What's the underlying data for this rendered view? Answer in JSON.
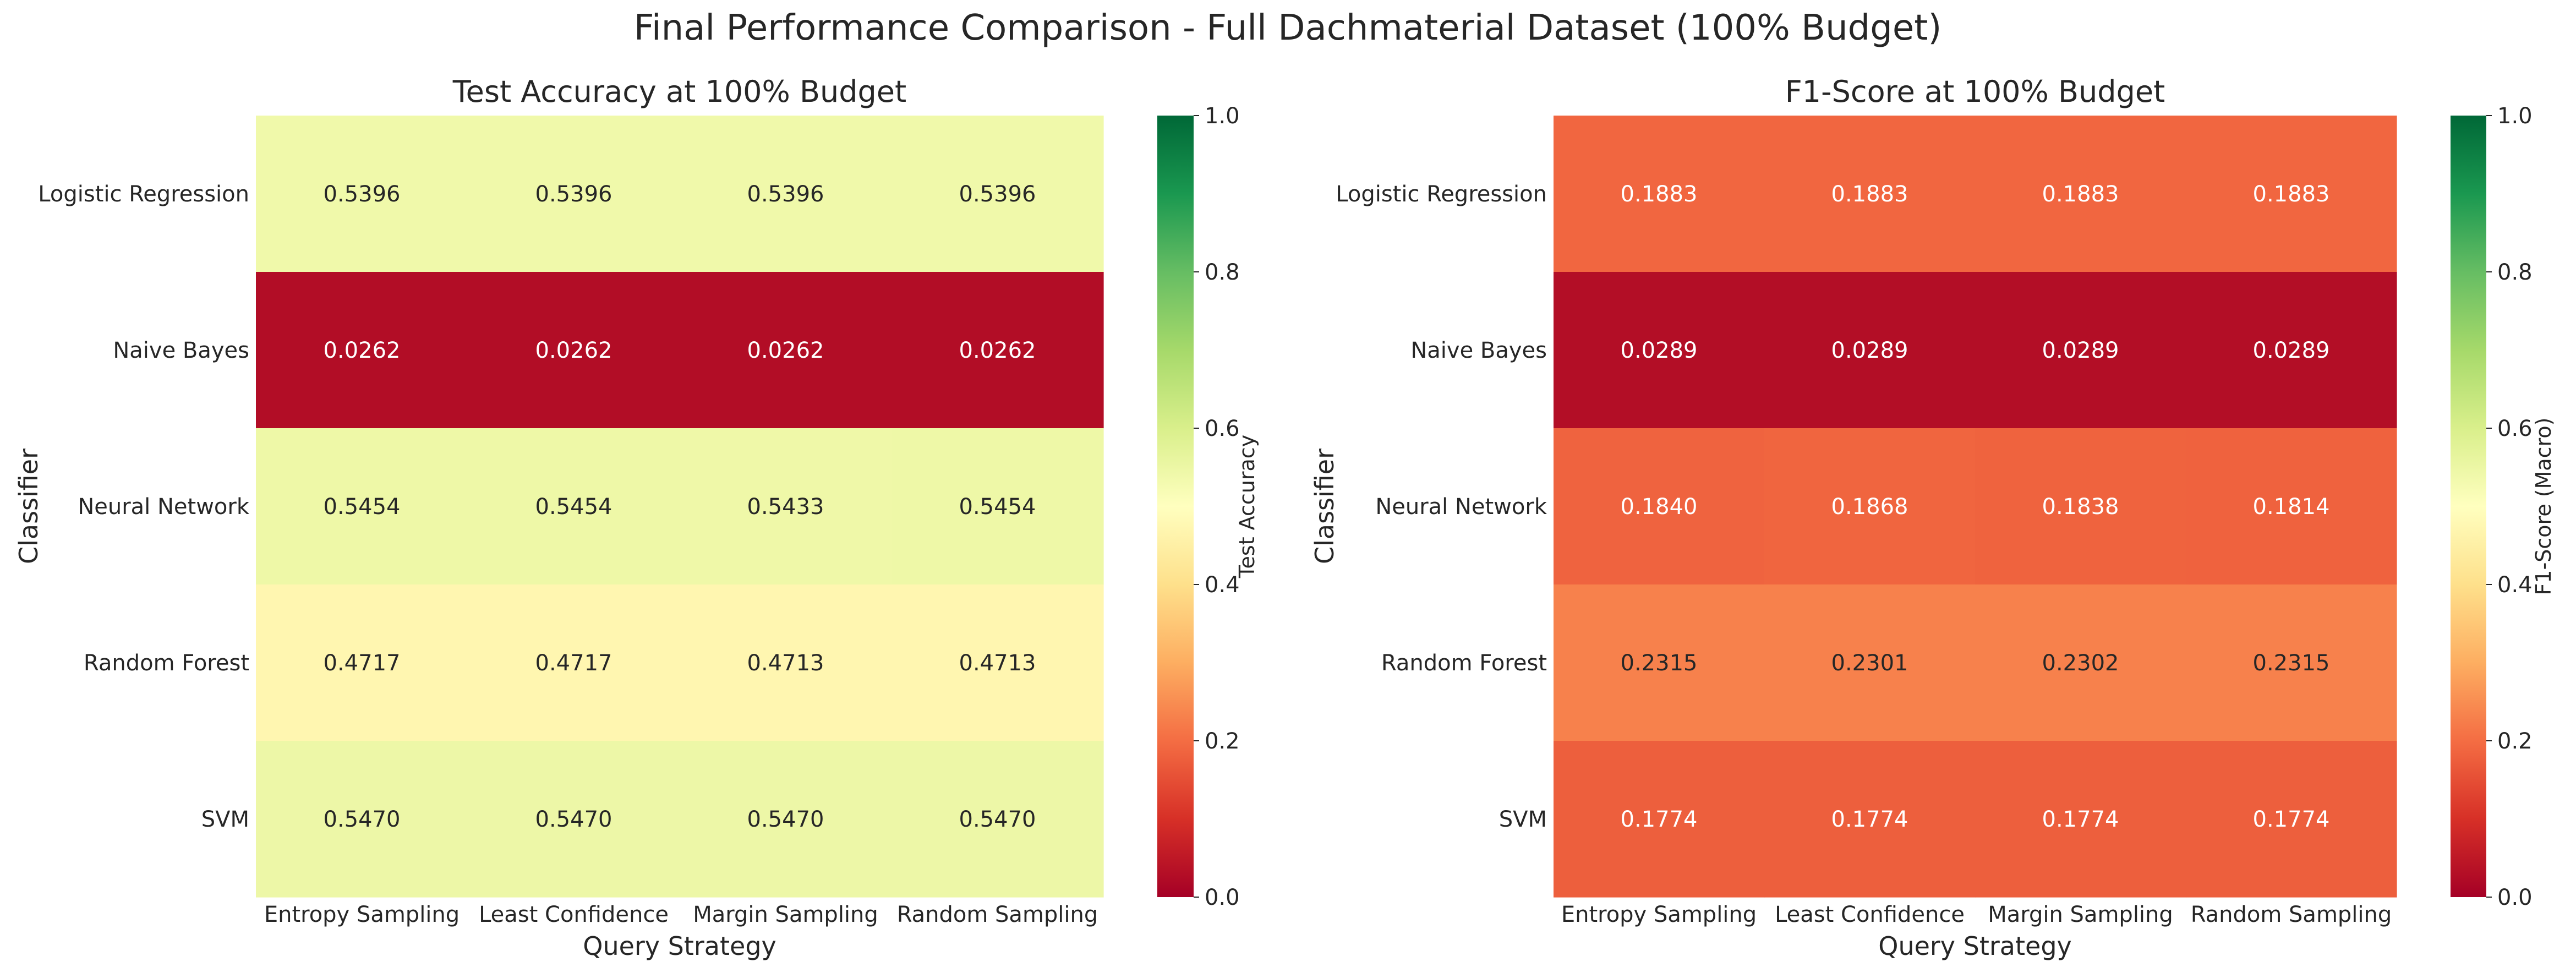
{
  "suptitle": "Final Performance Comparison - Full Dachmaterial Dataset (100% Budget)",
  "chart_data": [
    {
      "type": "heatmap",
      "title": "Test Accuracy at 100% Budget",
      "xlabel": "Query Strategy",
      "ylabel": "Classifier",
      "colorbar_label": "Test Accuracy",
      "colormap": "RdYlGn",
      "vmin": 0.0,
      "vmax": 1.0,
      "colorbar_ticks": [
        "0.0",
        "0.2",
        "0.4",
        "0.6",
        "0.8",
        "1.0"
      ],
      "x_categories": [
        "Entropy Sampling",
        "Least Confidence",
        "Margin Sampling",
        "Random Sampling"
      ],
      "y_categories": [
        "Logistic Regression",
        "Naive Bayes",
        "Neural Network",
        "Random Forest",
        "SVM"
      ],
      "values": [
        [
          0.5396,
          0.5396,
          0.5396,
          0.5396
        ],
        [
          0.0262,
          0.0262,
          0.0262,
          0.0262
        ],
        [
          0.5454,
          0.5454,
          0.5433,
          0.5454
        ],
        [
          0.4717,
          0.4717,
          0.4713,
          0.4713
        ],
        [
          0.547,
          0.547,
          0.547,
          0.547
        ]
      ]
    },
    {
      "type": "heatmap",
      "title": "F1-Score at 100% Budget",
      "xlabel": "Query Strategy",
      "ylabel": "Classifier",
      "colorbar_label": "F1-Score (Macro)",
      "colormap": "RdYlGn",
      "vmin": 0.0,
      "vmax": 1.0,
      "colorbar_ticks": [
        "0.0",
        "0.2",
        "0.4",
        "0.6",
        "0.8",
        "1.0"
      ],
      "x_categories": [
        "Entropy Sampling",
        "Least Confidence",
        "Margin Sampling",
        "Random Sampling"
      ],
      "y_categories": [
        "Logistic Regression",
        "Naive Bayes",
        "Neural Network",
        "Random Forest",
        "SVM"
      ],
      "values": [
        [
          0.1883,
          0.1883,
          0.1883,
          0.1883
        ],
        [
          0.0289,
          0.0289,
          0.0289,
          0.0289
        ],
        [
          0.184,
          0.1868,
          0.1838,
          0.1814
        ],
        [
          0.2315,
          0.2301,
          0.2302,
          0.2315
        ],
        [
          0.1774,
          0.1774,
          0.1774,
          0.1774
        ]
      ]
    }
  ]
}
